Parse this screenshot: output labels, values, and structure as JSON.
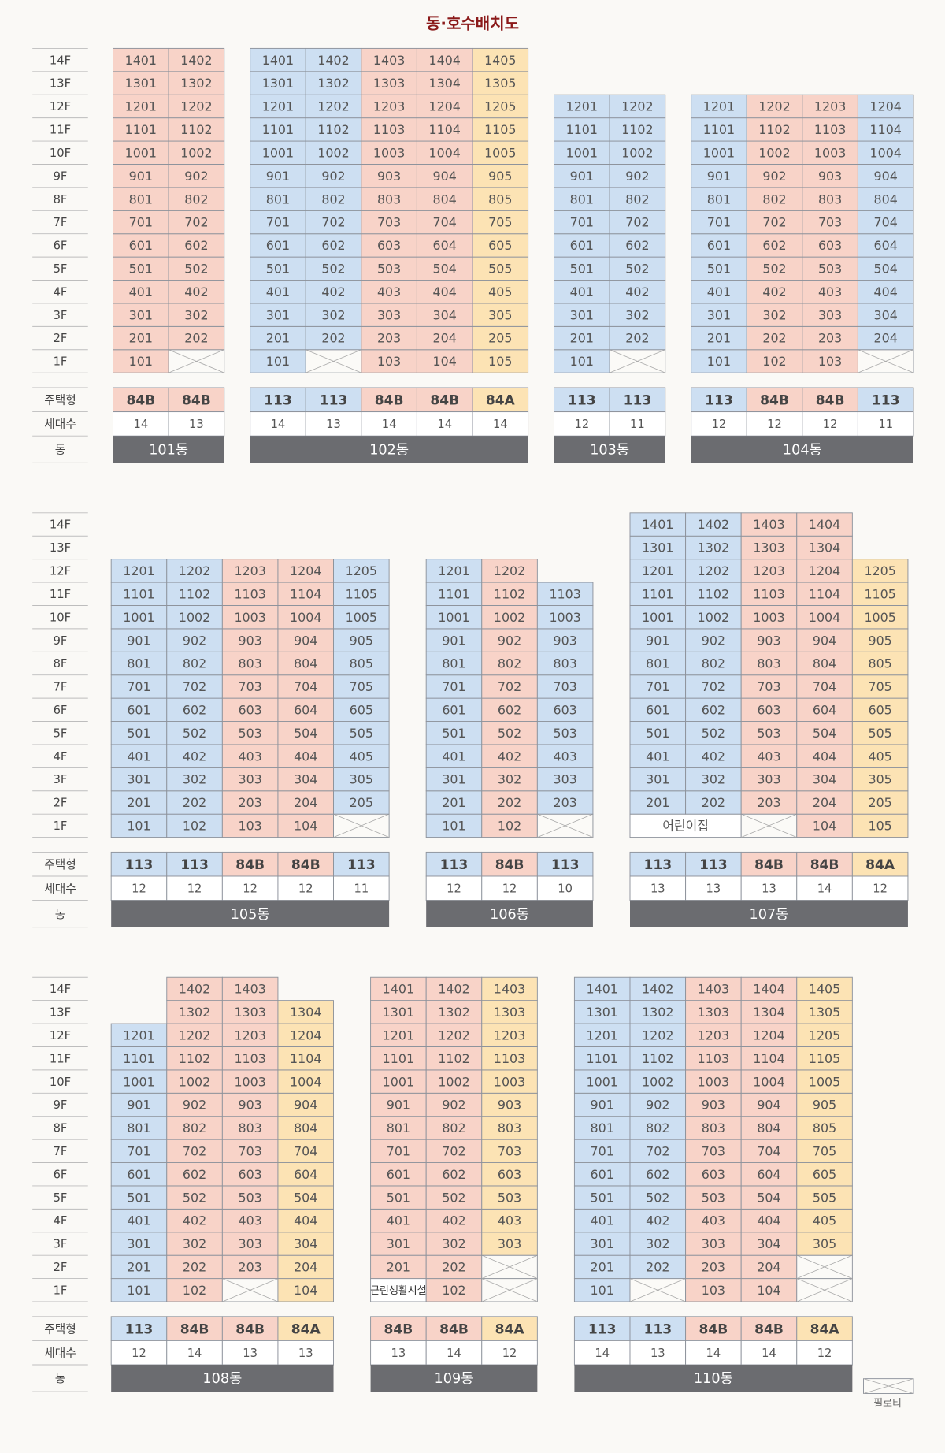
{
  "title": "동·호수배치도",
  "floor_labels": [
    "14F",
    "13F",
    "12F",
    "11F",
    "10F",
    "9F",
    "8F",
    "7F",
    "6F",
    "5F",
    "4F",
    "3F",
    "2F",
    "1F"
  ],
  "row_labels": [
    "주택형",
    "세대수",
    "동"
  ],
  "legend": {
    "pilotis": "필로티"
  },
  "type_colors": {
    "113": "#cddff2",
    "84B": "#f8d3c8",
    "84A": "#fce3b4"
  },
  "sections": [
    {
      "buildings": [
        {
          "name": "101동",
          "columns": [
            {
              "type": "84B",
              "households": 14,
              "units": [
                "101",
                "201",
                "301",
                "401",
                "501",
                "601",
                "701",
                "801",
                "901",
                "1001",
                "1101",
                "1201",
                "1301",
                "1401"
              ]
            },
            {
              "type": "84B",
              "households": 13,
              "units": [
                null,
                "202",
                "302",
                "402",
                "502",
                "602",
                "702",
                "802",
                "902",
                "1002",
                "1102",
                "1202",
                "1302",
                "1402"
              ]
            }
          ]
        },
        {
          "name": "102동",
          "columns": [
            {
              "type": "113",
              "households": 14,
              "units": [
                "101",
                "201",
                "301",
                "401",
                "501",
                "601",
                "701",
                "801",
                "901",
                "1001",
                "1101",
                "1201",
                "1301",
                "1401"
              ]
            },
            {
              "type": "113",
              "households": 13,
              "units": [
                null,
                "202",
                "302",
                "402",
                "502",
                "602",
                "702",
                "802",
                "902",
                "1002",
                "1102",
                "1202",
                "1302",
                "1402"
              ]
            },
            {
              "type": "84B",
              "households": 14,
              "units": [
                "103",
                "203",
                "303",
                "403",
                "503",
                "603",
                "703",
                "803",
                "903",
                "1003",
                "1103",
                "1203",
                "1303",
                "1403"
              ]
            },
            {
              "type": "84B",
              "households": 14,
              "units": [
                "104",
                "204",
                "304",
                "404",
                "504",
                "604",
                "704",
                "804",
                "904",
                "1004",
                "1104",
                "1204",
                "1304",
                "1404"
              ]
            },
            {
              "type": "84A",
              "households": 14,
              "units": [
                "105",
                "205",
                "305",
                "405",
                "505",
                "605",
                "705",
                "805",
                "905",
                "1005",
                "1105",
                "1205",
                "1305",
                "1405"
              ]
            }
          ]
        },
        {
          "name": "103동",
          "columns": [
            {
              "type": "113",
              "households": 12,
              "units": [
                "101",
                "201",
                "301",
                "401",
                "501",
                "601",
                "701",
                "801",
                "901",
                "1001",
                "1101",
                "1201"
              ]
            },
            {
              "type": "113",
              "households": 11,
              "units": [
                null,
                "202",
                "302",
                "402",
                "502",
                "602",
                "702",
                "802",
                "902",
                "1002",
                "1102",
                "1202"
              ]
            }
          ]
        },
        {
          "name": "104동",
          "columns": [
            {
              "type": "113",
              "households": 12,
              "units": [
                "101",
                "201",
                "301",
                "401",
                "501",
                "601",
                "701",
                "801",
                "901",
                "1001",
                "1101",
                "1201"
              ]
            },
            {
              "type": "84B",
              "households": 12,
              "units": [
                "102",
                "202",
                "302",
                "402",
                "502",
                "602",
                "702",
                "802",
                "902",
                "1002",
                "1102",
                "1202"
              ]
            },
            {
              "type": "84B",
              "households": 12,
              "units": [
                "103",
                "203",
                "303",
                "403",
                "503",
                "603",
                "703",
                "803",
                "903",
                "1003",
                "1103",
                "1203"
              ]
            },
            {
              "type": "113",
              "households": 11,
              "units": [
                null,
                "204",
                "304",
                "404",
                "504",
                "604",
                "704",
                "804",
                "904",
                "1004",
                "1104",
                "1204"
              ]
            }
          ]
        }
      ]
    },
    {
      "buildings": [
        {
          "name": "105동",
          "columns": [
            {
              "type": "113",
              "households": 12,
              "units": [
                "101",
                "201",
                "301",
                "401",
                "501",
                "601",
                "701",
                "801",
                "901",
                "1001",
                "1101",
                "1201"
              ]
            },
            {
              "type": "113",
              "households": 12,
              "units": [
                "102",
                "202",
                "302",
                "402",
                "502",
                "602",
                "702",
                "802",
                "902",
                "1002",
                "1102",
                "1202"
              ]
            },
            {
              "type": "84B",
              "households": 12,
              "units": [
                "103",
                "203",
                "303",
                "403",
                "503",
                "603",
                "703",
                "803",
                "903",
                "1003",
                "1103",
                "1203"
              ]
            },
            {
              "type": "84B",
              "households": 12,
              "units": [
                "104",
                "204",
                "304",
                "404",
                "504",
                "604",
                "704",
                "804",
                "904",
                "1004",
                "1104",
                "1204"
              ]
            },
            {
              "type": "113",
              "households": 11,
              "units": [
                null,
                "205",
                "305",
                "405",
                "505",
                "605",
                "705",
                "805",
                "905",
                "1005",
                "1105",
                "1205"
              ]
            }
          ]
        },
        {
          "name": "106동",
          "columns": [
            {
              "type": "113",
              "households": 12,
              "units": [
                "101",
                "201",
                "301",
                "401",
                "501",
                "601",
                "701",
                "801",
                "901",
                "1001",
                "1101",
                "1201"
              ]
            },
            {
              "type": "84B",
              "households": 12,
              "units": [
                "102",
                "202",
                "302",
                "402",
                "502",
                "602",
                "702",
                "802",
                "902",
                "1002",
                "1102",
                "1202"
              ]
            },
            {
              "type": "113",
              "households": 10,
              "units": [
                null,
                "203",
                "303",
                "403",
                "503",
                "603",
                "703",
                "803",
                "903",
                "1003",
                "1103"
              ]
            }
          ]
        },
        {
          "name": "107동",
          "columns": [
            {
              "type": "113",
              "households": 13,
              "units": [
                {
                  "label": "어린이집",
                  "span": 2
                },
                "201",
                "301",
                "401",
                "501",
                "601",
                "701",
                "801",
                "901",
                "1001",
                "1101",
                "1201",
                "1301",
                "1401"
              ]
            },
            {
              "type": "113",
              "households": 13,
              "units": [
                null,
                "202",
                "302",
                "402",
                "502",
                "602",
                "702",
                "802",
                "902",
                "1002",
                "1102",
                "1202",
                "1302",
                "1402"
              ]
            },
            {
              "type": "84B",
              "households": 13,
              "units": [
                null,
                "203",
                "303",
                "403",
                "503",
                "603",
                "703",
                "803",
                "903",
                "1003",
                "1103",
                "1203",
                "1303",
                "1403"
              ]
            },
            {
              "type": "84B",
              "households": 14,
              "units": [
                "104",
                "204",
                "304",
                "404",
                "504",
                "604",
                "704",
                "804",
                "904",
                "1004",
                "1104",
                "1204",
                "1304",
                "1404"
              ]
            },
            {
              "type": "84A",
              "households": 12,
              "units": [
                "105",
                "205",
                "305",
                "405",
                "505",
                "605",
                "705",
                "805",
                "905",
                "1005",
                "1105",
                "1205"
              ]
            }
          ]
        }
      ]
    },
    {
      "buildings": [
        {
          "name": "108동",
          "columns": [
            {
              "type": "113",
              "households": 12,
              "units": [
                "101",
                "201",
                "301",
                "401",
                "501",
                "601",
                "701",
                "801",
                "901",
                "1001",
                "1101",
                "1201"
              ]
            },
            {
              "type": "84B",
              "households": 14,
              "units": [
                "102",
                "202",
                "302",
                "402",
                "502",
                "602",
                "702",
                "802",
                "902",
                "1002",
                "1102",
                "1202",
                "1302",
                "1402"
              ]
            },
            {
              "type": "84B",
              "households": 13,
              "units": [
                null,
                "203",
                "303",
                "403",
                "503",
                "603",
                "703",
                "803",
                "903",
                "1003",
                "1103",
                "1203",
                "1303",
                "1403"
              ]
            },
            {
              "type": "84A",
              "households": 13,
              "units": [
                "104",
                "204",
                "304",
                "404",
                "504",
                "604",
                "704",
                "804",
                "904",
                "1004",
                "1104",
                "1204",
                "1304"
              ]
            }
          ]
        },
        {
          "name": "109동",
          "columns": [
            {
              "type": "84B",
              "households": 13,
              "units": [
                {
                  "label": "근린생활시설"
                },
                "201",
                "301",
                "401",
                "501",
                "601",
                "701",
                "801",
                "901",
                "1001",
                "1101",
                "1201",
                "1301",
                "1401"
              ]
            },
            {
              "type": "84B",
              "households": 14,
              "units": [
                "102",
                "202",
                "302",
                "402",
                "502",
                "602",
                "702",
                "802",
                "902",
                "1002",
                "1102",
                "1202",
                "1302",
                "1402"
              ]
            },
            {
              "type": "84A",
              "households": 12,
              "units": [
                null,
                null,
                "303",
                "403",
                "503",
                "603",
                "703",
                "803",
                "903",
                "1003",
                "1103",
                "1203",
                "1303",
                "1403"
              ]
            }
          ]
        },
        {
          "name": "110동",
          "columns": [
            {
              "type": "113",
              "households": 14,
              "units": [
                "101",
                "201",
                "301",
                "401",
                "501",
                "601",
                "701",
                "801",
                "901",
                "1001",
                "1101",
                "1201",
                "1301",
                "1401"
              ]
            },
            {
              "type": "113",
              "households": 13,
              "units": [
                null,
                "202",
                "302",
                "402",
                "502",
                "602",
                "702",
                "802",
                "902",
                "1002",
                "1102",
                "1202",
                "1302",
                "1402"
              ]
            },
            {
              "type": "84B",
              "households": 14,
              "units": [
                "103",
                "203",
                "303",
                "403",
                "503",
                "603",
                "703",
                "803",
                "903",
                "1003",
                "1103",
                "1203",
                "1303",
                "1403"
              ]
            },
            {
              "type": "84B",
              "households": 14,
              "units": [
                "104",
                "204",
                "304",
                "404",
                "504",
                "604",
                "704",
                "804",
                "904",
                "1004",
                "1104",
                "1204",
                "1304",
                "1404"
              ]
            },
            {
              "type": "84A",
              "households": 12,
              "units": [
                null,
                null,
                "305",
                "405",
                "505",
                "605",
                "705",
                "805",
                "905",
                "1005",
                "1105",
                "1205",
                "1305",
                "1405"
              ]
            }
          ]
        }
      ]
    }
  ]
}
